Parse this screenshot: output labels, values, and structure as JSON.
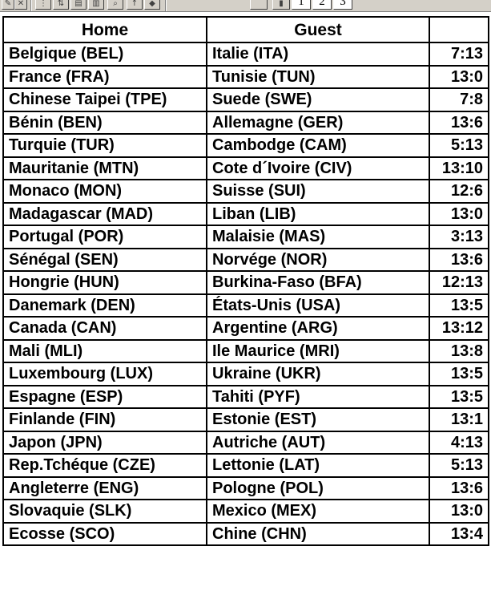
{
  "toolbar": {
    "page_buttons": [
      "1",
      "2",
      "3"
    ]
  },
  "table": {
    "headers": {
      "home": "Home",
      "guest": "Guest",
      "score": ""
    },
    "rows": [
      {
        "home": "Belgique (BEL)",
        "guest": "Italie (ITA)",
        "score": "7:13"
      },
      {
        "home": "France (FRA)",
        "guest": "Tunisie (TUN)",
        "score": "13:0"
      },
      {
        "home": "Chinese Taipei (TPE)",
        "guest": "Suede (SWE)",
        "score": "7:8"
      },
      {
        "home": "Bénin (BEN)",
        "guest": "Allemagne (GER)",
        "score": "13:6"
      },
      {
        "home": "Turquie (TUR)",
        "guest": "Cambodge (CAM)",
        "score": "5:13"
      },
      {
        "home": "Mauritanie (MTN)",
        "guest": "Cote d´Ivoire (CIV)",
        "score": "13:10"
      },
      {
        "home": "Monaco (MON)",
        "guest": "Suisse (SUI)",
        "score": "12:6"
      },
      {
        "home": "Madagascar (MAD)",
        "guest": "Liban (LIB)",
        "score": "13:0"
      },
      {
        "home": "Portugal (POR)",
        "guest": "Malaisie (MAS)",
        "score": "3:13"
      },
      {
        "home": "Sénégal (SEN)",
        "guest": "Norvége (NOR)",
        "score": "13:6"
      },
      {
        "home": "Hongrie (HUN)",
        "guest": "Burkina-Faso (BFA)",
        "score": "12:13"
      },
      {
        "home": "Danemark (DEN)",
        "guest": "États-Unis (USA)",
        "score": "13:5"
      },
      {
        "home": "Canada (CAN)",
        "guest": "Argentine (ARG)",
        "score": "13:12"
      },
      {
        "home": "Mali (MLI)",
        "guest": "Ile Maurice (MRI)",
        "score": "13:8"
      },
      {
        "home": "Luxembourg (LUX)",
        "guest": "Ukraine (UKR)",
        "score": "13:5"
      },
      {
        "home": "Espagne (ESP)",
        "guest": "Tahiti (PYF)",
        "score": "13:5"
      },
      {
        "home": "Finlande (FIN)",
        "guest": "Estonie (EST)",
        "score": "13:1"
      },
      {
        "home": "Japon (JPN)",
        "guest": "Autriche (AUT)",
        "score": "4:13"
      },
      {
        "home": "Rep.Tchéque (CZE)",
        "guest": "Lettonie (LAT)",
        "score": "5:13"
      },
      {
        "home": "Angleterre (ENG)",
        "guest": "Pologne (POL)",
        "score": "13:6"
      },
      {
        "home": "Slovaquie (SLK)",
        "guest": "Mexico (MEX)",
        "score": "13:0"
      },
      {
        "home": "Ecosse (SCO)",
        "guest": "Chine (CHN)",
        "score": "13:4"
      }
    ]
  }
}
